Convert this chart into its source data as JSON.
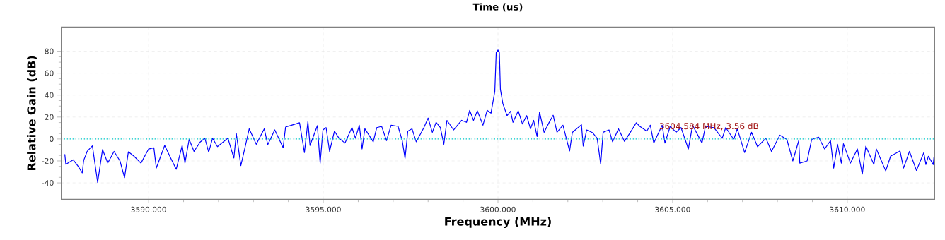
{
  "chart_data": {
    "type": "line",
    "title": "Time (us)",
    "xlabel": "Frequency (MHz)",
    "ylabel": "Relative Gain (dB)",
    "xlim": [
      3587.5,
      3612.5
    ],
    "ylim": [
      -55,
      102
    ],
    "xticks": [
      {
        "value": 3590,
        "label": "3590.000"
      },
      {
        "value": 3595,
        "label": "3595.000"
      },
      {
        "value": 3600,
        "label": "3600.000"
      },
      {
        "value": 3605,
        "label": "3605.000"
      },
      {
        "value": 3610,
        "label": "3610.000"
      }
    ],
    "yticks": [
      -40,
      -20,
      0,
      20,
      40,
      60,
      80
    ],
    "grid": true,
    "line_style": "solid",
    "ref_lines": [
      {
        "axis": "y",
        "value": 0,
        "color": "#00cccc",
        "line_style": "dotted"
      }
    ],
    "annotations": [
      {
        "text": "3604.584 MHz, 3.56 dB",
        "x": 3604.584,
        "y": 3.56
      }
    ],
    "series": [
      {
        "color": "#0000ff",
        "x": [
          3587.6,
          3587.63,
          3587.84,
          3587.98,
          3588.1,
          3588.14,
          3588.24,
          3588.39,
          3588.54,
          3588.68,
          3588.83,
          3589.01,
          3589.18,
          3589.31,
          3589.42,
          3589.58,
          3589.78,
          3590.0,
          3590.15,
          3590.22,
          3590.46,
          3590.62,
          3590.79,
          3590.96,
          3591.04,
          3591.16,
          3591.3,
          3591.47,
          3591.61,
          3591.72,
          3591.83,
          3591.97,
          3592.27,
          3592.44,
          3592.51,
          3592.64,
          3592.78,
          3592.88,
          3593.08,
          3593.31,
          3593.41,
          3593.61,
          3593.85,
          3593.92,
          3594.09,
          3594.32,
          3594.46,
          3594.56,
          3594.62,
          3594.83,
          3594.91,
          3594.99,
          3595.08,
          3595.18,
          3595.32,
          3595.45,
          3595.62,
          3595.82,
          3595.92,
          3596.03,
          3596.11,
          3596.19,
          3596.43,
          3596.53,
          3596.67,
          3596.81,
          3596.94,
          3597.14,
          3597.26,
          3597.34,
          3597.42,
          3597.54,
          3597.66,
          3597.88,
          3598.0,
          3598.12,
          3598.23,
          3598.35,
          3598.45,
          3598.54,
          3598.73,
          3598.96,
          3599.1,
          3599.19,
          3599.3,
          3599.41,
          3599.57,
          3599.69,
          3599.8,
          3599.91,
          3599.95,
          3600.0,
          3600.04,
          3600.07,
          3600.14,
          3600.26,
          3600.36,
          3600.43,
          3600.58,
          3600.7,
          3600.82,
          3600.93,
          3601.02,
          3601.12,
          3601.19,
          3601.32,
          3601.46,
          3601.58,
          3601.69,
          3601.86,
          3602.05,
          3602.13,
          3602.39,
          3602.44,
          3602.54,
          3602.71,
          3602.84,
          3602.94,
          3603.01,
          3603.18,
          3603.28,
          3603.45,
          3603.62,
          3603.79,
          3603.96,
          3604.06,
          3604.26,
          3604.36,
          3604.46,
          3604.7,
          3604.78,
          3604.93,
          3605.1,
          3605.24,
          3605.45,
          3605.57,
          3605.84,
          3605.94,
          3606.18,
          3606.42,
          3606.52,
          3606.75,
          3606.85,
          3607.06,
          3607.26,
          3607.43,
          3607.67,
          3607.83,
          3608.07,
          3608.27,
          3608.44,
          3608.61,
          3608.64,
          3608.85,
          3608.98,
          3609.18,
          3609.35,
          3609.52,
          3609.61,
          3609.72,
          3609.83,
          3609.89,
          3610.09,
          3610.29,
          3610.43,
          3610.53,
          3610.76,
          3610.83,
          3611.1,
          3611.24,
          3611.51,
          3611.61,
          3611.78,
          3611.98,
          3612.19,
          3612.25,
          3612.32,
          3612.46,
          3612.48
        ],
        "values": [
          -13.9,
          -23,
          -19,
          -24.8,
          -30.9,
          -19.6,
          -11.3,
          -6.3,
          -39.6,
          -9.6,
          -22,
          -11.3,
          -20,
          -35.2,
          -11.7,
          -15.7,
          -22,
          -9.1,
          -8,
          -26.5,
          -5.9,
          -16.7,
          -27.6,
          -5.9,
          -22,
          -0.4,
          -11.3,
          -3,
          0.7,
          -12,
          0.7,
          -7,
          0.7,
          -17.4,
          5,
          -24.3,
          -4.8,
          9.3,
          -4.8,
          9.3,
          -5.2,
          8.3,
          -8,
          10.9,
          12.6,
          14.8,
          -12.4,
          15.9,
          -5.9,
          12.2,
          -22,
          8.3,
          10.4,
          -11.3,
          7.2,
          0.7,
          -3.7,
          10.4,
          0.7,
          12.6,
          -9.1,
          9.3,
          -2.6,
          10.4,
          11.5,
          -1.5,
          12.6,
          11.5,
          -1.5,
          -17.8,
          7.2,
          9.3,
          -2.6,
          10.4,
          19.1,
          6.1,
          15.2,
          10.4,
          -4.8,
          17,
          8.3,
          17,
          15.2,
          26.1,
          17,
          25.7,
          12.6,
          26.1,
          23.5,
          43.5,
          78.9,
          81.1,
          78.9,
          45.2,
          32.2,
          21.3,
          25.2,
          15.2,
          25.7,
          13.7,
          21.3,
          9.3,
          17,
          2.2,
          24.6,
          6.1,
          14.8,
          21.7,
          6.1,
          12.6,
          -10.9,
          6.1,
          13,
          -6.5,
          8.3,
          5.7,
          0.7,
          -22.8,
          6.1,
          8.3,
          -2.6,
          9.3,
          -2.2,
          6.1,
          14.8,
          11.5,
          7.2,
          12.6,
          -3.7,
          12.6,
          -3.7,
          11.5,
          6.1,
          10.4,
          -9.1,
          12.6,
          -3.7,
          11.5,
          10.4,
          0.7,
          10.4,
          -0.4,
          9.3,
          -12.4,
          6.1,
          -7,
          0.7,
          -11.3,
          3.5,
          -0.4,
          -20,
          -1.5,
          -22,
          -20,
          -0.4,
          1.7,
          -9.1,
          -1.5,
          -26.5,
          -4.8,
          -22,
          -4.3,
          -22,
          -9.1,
          -32,
          -6.5,
          -23.3,
          -9.1,
          -29.1,
          -15.7,
          -10.9,
          -26.5,
          -11.3,
          -28.7,
          -12.4,
          -23.3,
          -15.7,
          -23.3,
          -16.7
        ]
      }
    ]
  }
}
